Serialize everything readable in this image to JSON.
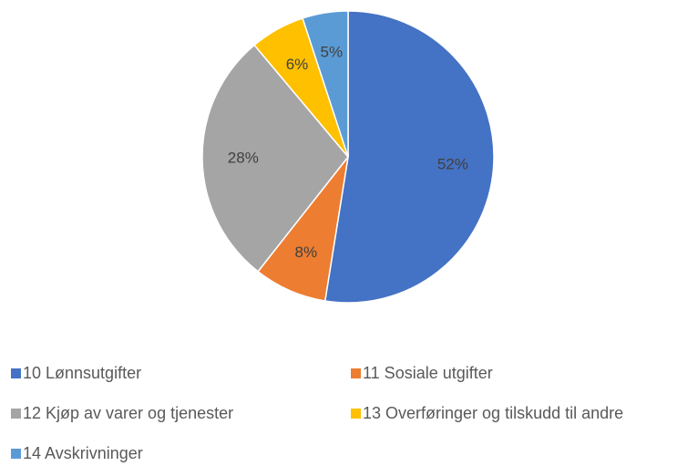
{
  "chart_data": {
    "type": "pie",
    "categories": [
      "10 Lønnsutgifter",
      "11 Sosiale utgifter",
      "12 Kjøp av varer og tjenester",
      "13 Overføringer og tilskudd til andre",
      "14 Avskrivninger"
    ],
    "values": [
      52,
      8,
      28,
      6,
      5
    ],
    "value_labels": [
      "52%",
      "8%",
      "28%",
      "6%",
      "5%"
    ],
    "colors": [
      "#4472c4",
      "#ed7d31",
      "#a5a5a5",
      "#ffc000",
      "#5b9bd5"
    ],
    "legend": "bottom"
  }
}
